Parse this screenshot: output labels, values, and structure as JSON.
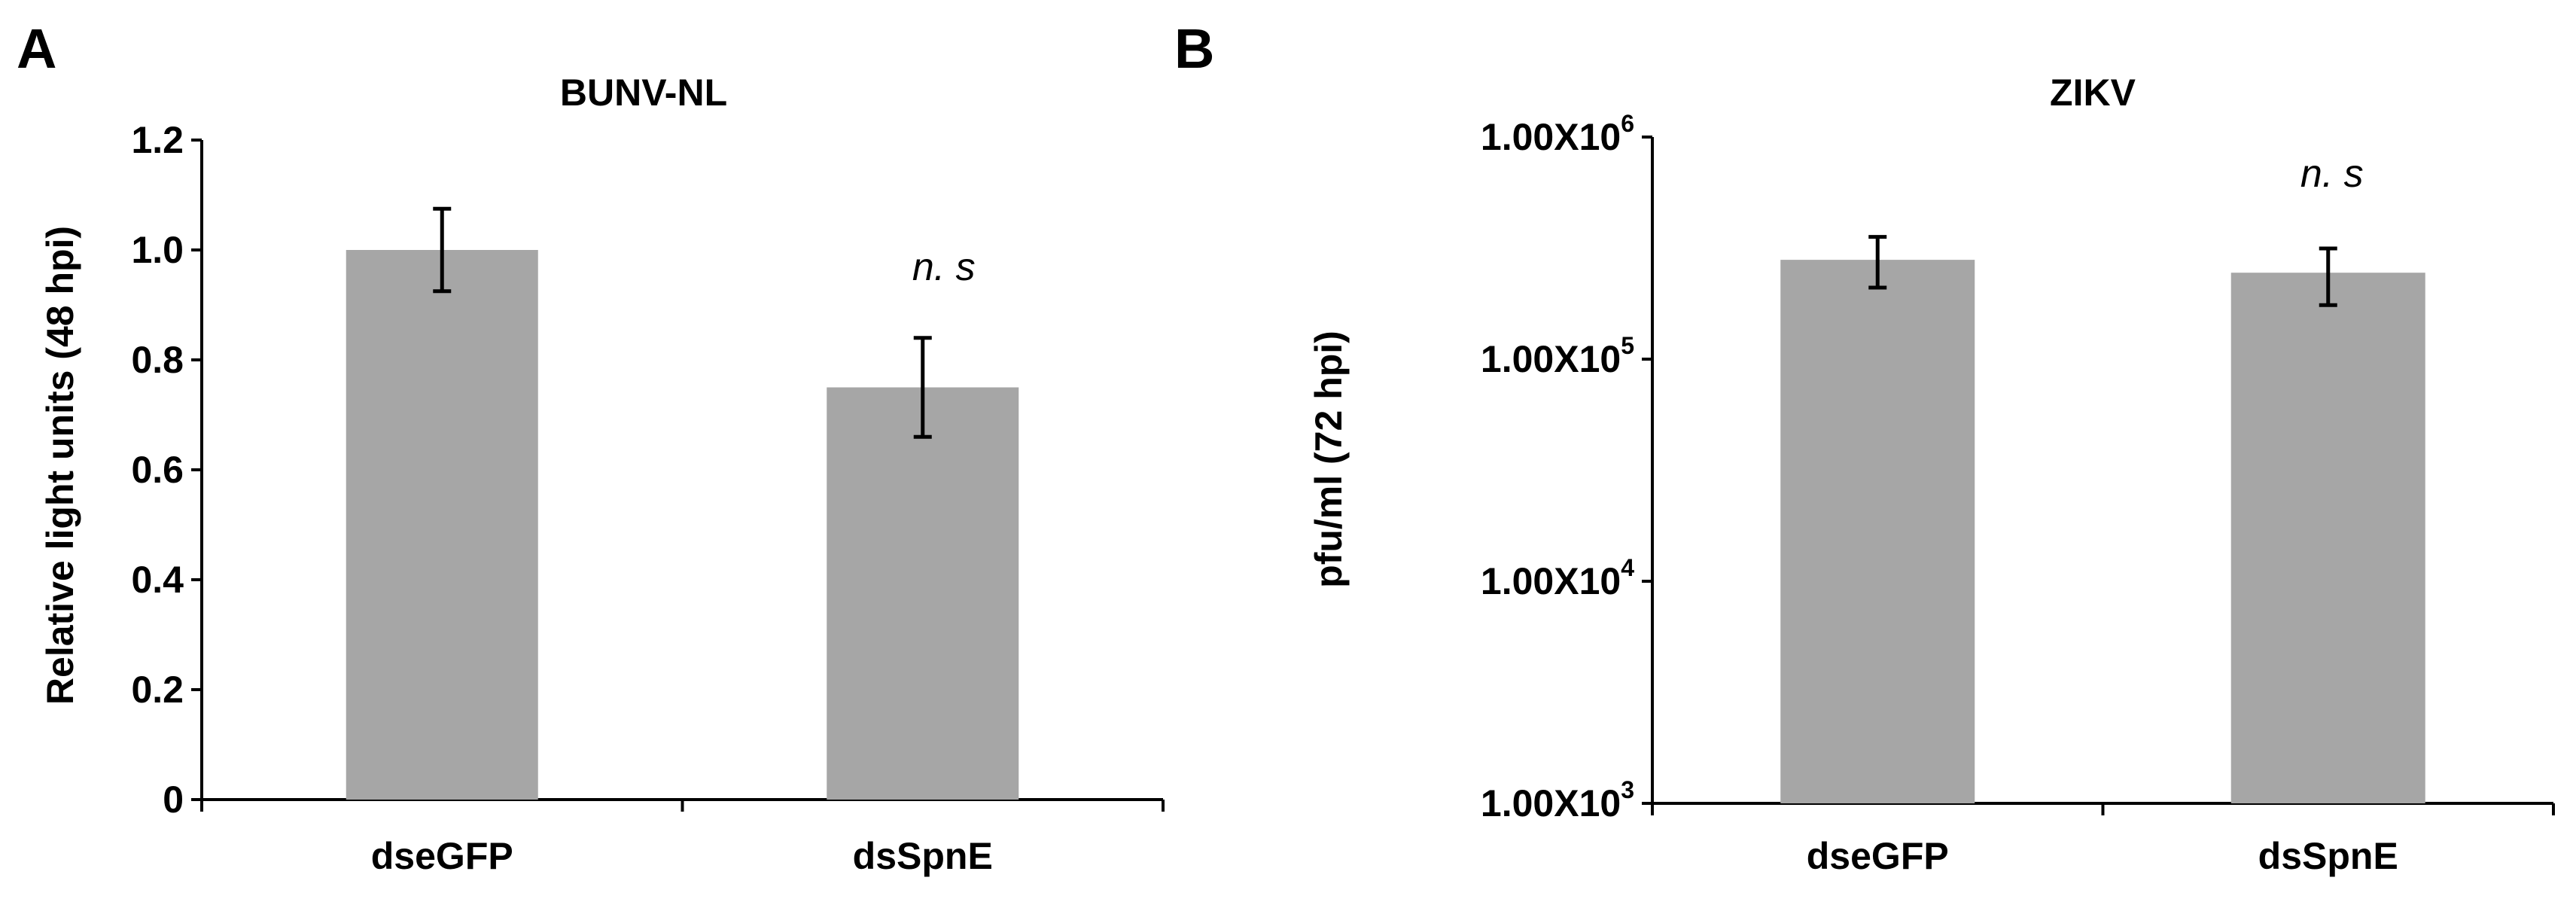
{
  "panels": [
    {
      "letter": "A"
    },
    {
      "letter": "B"
    }
  ],
  "chart_data": [
    {
      "type": "bar",
      "title": "BUNV-NL",
      "ylabel": "Relative light units (48 hpi)",
      "xlabel": "",
      "categories": [
        "dseGFP",
        "dsSpnE"
      ],
      "values": [
        1.0,
        0.75
      ],
      "errors": [
        0.075,
        0.09
      ],
      "ylim": [
        0,
        1.2
      ],
      "yticks": [
        "0",
        "0.2",
        "0.4",
        "0.6",
        "0.8",
        "1.0",
        "1.2"
      ],
      "ytick_values": [
        0,
        0.2,
        0.4,
        0.6,
        0.8,
        1.0,
        1.2
      ],
      "yscale": "linear",
      "annotations": [
        {
          "category": "dsSpnE",
          "text": "n. s"
        }
      ],
      "bar_color": "#a6a6a6",
      "grid": false
    },
    {
      "type": "bar",
      "title": "ZIKV",
      "ylabel": "pfu/ml (72 hpi)",
      "xlabel": "",
      "categories": [
        "dseGFP",
        "dsSpnE"
      ],
      "values": [
        280000,
        245000
      ],
      "error_low": [
        210000,
        175000
      ],
      "error_high": [
        355000,
        315000
      ],
      "ylim": [
        1000,
        1000000
      ],
      "yscale": "log",
      "yticks": [
        {
          "base": "1.00X10",
          "exp": "3",
          "value": 1000
        },
        {
          "base": "1.00X10",
          "exp": "4",
          "value": 10000
        },
        {
          "base": "1.00X10",
          "exp": "5",
          "value": 100000
        },
        {
          "base": "1.00X10",
          "exp": "6",
          "value": 1000000
        }
      ],
      "annotations": [
        {
          "category": "dsSpnE",
          "text": "n. s"
        }
      ],
      "bar_color": "#a6a6a6",
      "grid": false
    }
  ]
}
